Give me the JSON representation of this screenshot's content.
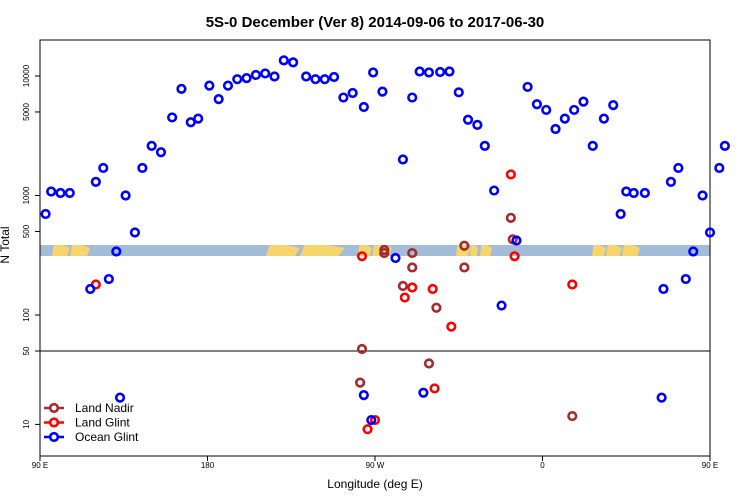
{
  "chart_data": {
    "type": "scatter",
    "title": "5S-0 December (Ver 8)   2014-09-06 to 2017-06-30",
    "xlabel": "Longitude (deg E)",
    "ylabel": "N Total",
    "y_scale": "log",
    "xlim": [
      90,
      450
    ],
    "xticks": [
      {
        "x": 90,
        "label": "90 E"
      },
      {
        "x": 180,
        "label": "180"
      },
      {
        "x": 270,
        "label": "90 W"
      },
      {
        "x": 360,
        "label": "0"
      },
      {
        "x": 450,
        "label": "90 E"
      },
      {
        "x": 540,
        "label": "180"
      }
    ],
    "upper_panel": {
      "ylim": [
        50,
        20000
      ],
      "yticks": [
        {
          "y": 100,
          "label": "100"
        },
        {
          "y": 500,
          "label": "500"
        },
        {
          "y": 1000,
          "label": "1000"
        },
        {
          "y": 5000,
          "label": "5000"
        },
        {
          "y": 10000,
          "label": "10000"
        }
      ]
    },
    "lower_panel": {
      "ylim": [
        5,
        50
      ],
      "yticks": [
        {
          "y": 10,
          "label": "10"
        },
        {
          "y": 50,
          "label": "50"
        }
      ]
    },
    "legend_position": "bottom-left",
    "series": [
      {
        "name": "Land Nadir",
        "color": "#a52a2a",
        "points": [
          [
            275,
            350
          ],
          [
            275,
            330
          ],
          [
            290,
            330
          ],
          [
            290,
            250
          ],
          [
            263,
            52
          ],
          [
            299,
            38
          ],
          [
            262,
            25
          ],
          [
            285,
            175
          ],
          [
            318,
            380
          ],
          [
            318,
            250
          ],
          [
            343,
            650
          ],
          [
            344,
            430
          ],
          [
            303,
            115
          ],
          [
            376,
            12
          ]
        ]
      },
      {
        "name": "Land Glint",
        "color": "#ff0000",
        "points": [
          [
            120,
            180
          ],
          [
            290,
            170
          ],
          [
            286,
            140
          ],
          [
            263,
            310
          ],
          [
            301,
            165
          ],
          [
            343,
            1500
          ],
          [
            345,
            310
          ],
          [
            376,
            180
          ],
          [
            311,
            80
          ],
          [
            302,
            22
          ],
          [
            270,
            11
          ],
          [
            266,
            9
          ]
        ]
      },
      {
        "name": "Ocean Glint",
        "color": "#0000ff",
        "points": [
          [
            93,
            700
          ],
          [
            96,
            1080
          ],
          [
            101,
            1050
          ],
          [
            106,
            1050
          ],
          [
            117,
            165
          ],
          [
            120,
            1300
          ],
          [
            124,
            1700
          ],
          [
            127,
            200
          ],
          [
            131,
            340
          ],
          [
            136,
            1000
          ],
          [
            141,
            490
          ],
          [
            145,
            1700
          ],
          [
            150,
            2600
          ],
          [
            155,
            2300
          ],
          [
            161,
            4500
          ],
          [
            166,
            7800
          ],
          [
            171,
            4100
          ],
          [
            175,
            4400
          ],
          [
            181,
            8300
          ],
          [
            186,
            6400
          ],
          [
            191,
            8300
          ],
          [
            196,
            9400
          ],
          [
            201,
            9600
          ],
          [
            206,
            10200
          ],
          [
            211,
            10500
          ],
          [
            216,
            9900
          ],
          [
            221,
            13500
          ],
          [
            226,
            13000
          ],
          [
            233,
            9900
          ],
          [
            238,
            9400
          ],
          [
            243,
            9400
          ],
          [
            248,
            9800
          ],
          [
            253,
            6600
          ],
          [
            258,
            7200
          ],
          [
            264,
            5500
          ],
          [
            269,
            10700
          ],
          [
            274,
            7400
          ],
          [
            281,
            300
          ],
          [
            285,
            2000
          ],
          [
            290,
            6600
          ],
          [
            294,
            10900
          ],
          [
            299,
            10700
          ],
          [
            305,
            10800
          ],
          [
            310,
            10900
          ],
          [
            315,
            7300
          ],
          [
            320,
            4300
          ],
          [
            325,
            3900
          ],
          [
            329,
            2600
          ],
          [
            334,
            1100
          ],
          [
            338,
            120
          ],
          [
            346,
            420
          ],
          [
            352,
            8100
          ],
          [
            357,
            5800
          ],
          [
            362,
            5200
          ],
          [
            367,
            3600
          ],
          [
            372,
            4400
          ],
          [
            377,
            5200
          ],
          [
            382,
            6100
          ],
          [
            387,
            2600
          ],
          [
            393,
            4400
          ],
          [
            398,
            5700
          ],
          [
            402,
            700
          ],
          [
            405,
            1080
          ],
          [
            409,
            1050
          ],
          [
            415,
            1050
          ],
          [
            425,
            165
          ],
          [
            429,
            1300
          ],
          [
            433,
            1700
          ],
          [
            437,
            200
          ],
          [
            441,
            340
          ],
          [
            446,
            1000
          ],
          [
            450,
            490
          ],
          [
            455,
            1700
          ],
          [
            458,
            2600
          ],
          [
            264,
            19
          ],
          [
            296,
            20
          ],
          [
            268,
            11
          ],
          [
            133,
            18
          ],
          [
            424,
            18
          ]
        ]
      }
    ],
    "map_band": {
      "ocean_color": "#a3bdd8",
      "land_color": "#f6d56c"
    }
  }
}
